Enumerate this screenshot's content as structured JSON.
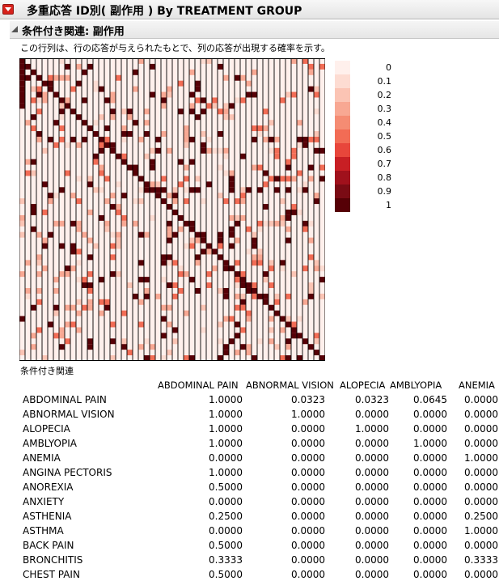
{
  "header": {
    "title": "多重応答 ID別( 副作用 ) By TREATMENT GROUP",
    "section_title": "条件付き関連: 副作用",
    "subtitle": "この行列は、行の応答が与えられたもとで、列の応答が出現する確率を示す。"
  },
  "legend": {
    "labels": [
      "0",
      "0.1",
      "0.2",
      "0.3",
      "0.4",
      "0.5",
      "0.6",
      "0.7",
      "0.8",
      "0.9",
      "1"
    ],
    "colors": [
      "#fff0ec",
      "#fddcd2",
      "#fbc4b4",
      "#f8a893",
      "#f58c73",
      "#f26c55",
      "#e8463b",
      "#c81f24",
      "#a0111c",
      "#7a0b14",
      "#560006"
    ]
  },
  "matrix_caption": "条件付き関連",
  "table": {
    "columns": [
      "ABDOMINAL PAIN",
      "ABNORMAL VISION",
      "ALOPECIA",
      "AMBLYOPIA",
      "ANEMIA"
    ],
    "rows": [
      {
        "label": "ABDOMINAL PAIN",
        "values": [
          "1.0000",
          "0.0323",
          "0.0323",
          "0.0645",
          "0.0000"
        ]
      },
      {
        "label": "ABNORMAL VISION",
        "values": [
          "1.0000",
          "1.0000",
          "0.0000",
          "0.0000",
          "0.0000"
        ]
      },
      {
        "label": "ALOPECIA",
        "values": [
          "1.0000",
          "0.0000",
          "1.0000",
          "0.0000",
          "0.0000"
        ]
      },
      {
        "label": "AMBLYOPIA",
        "values": [
          "1.0000",
          "0.0000",
          "0.0000",
          "1.0000",
          "0.0000"
        ]
      },
      {
        "label": "ANEMIA",
        "values": [
          "0.0000",
          "0.0000",
          "0.0000",
          "0.0000",
          "1.0000"
        ]
      },
      {
        "label": "ANGINA PECTORIS",
        "values": [
          "1.0000",
          "0.0000",
          "0.0000",
          "0.0000",
          "0.0000"
        ]
      },
      {
        "label": "ANOREXIA",
        "values": [
          "0.5000",
          "0.0000",
          "0.0000",
          "0.0000",
          "0.0000"
        ]
      },
      {
        "label": "ANXIETY",
        "values": [
          "0.0000",
          "0.0000",
          "0.0000",
          "0.0000",
          "0.0000"
        ]
      },
      {
        "label": "ASTHENIA",
        "values": [
          "0.2500",
          "0.0000",
          "0.0000",
          "0.0000",
          "0.2500"
        ]
      },
      {
        "label": "ASTHMA",
        "values": [
          "0.0000",
          "0.0000",
          "0.0000",
          "0.0000",
          "1.0000"
        ]
      },
      {
        "label": "BACK PAIN",
        "values": [
          "0.5000",
          "0.0000",
          "0.0000",
          "0.0000",
          "0.0000"
        ]
      },
      {
        "label": "BRONCHITIS",
        "values": [
          "0.3333",
          "0.0000",
          "0.0000",
          "0.0000",
          "0.3333"
        ]
      },
      {
        "label": "CHEST PAIN",
        "values": [
          "0.5000",
          "0.0000",
          "0.0000",
          "0.0000",
          "0.0000"
        ]
      }
    ]
  }
}
